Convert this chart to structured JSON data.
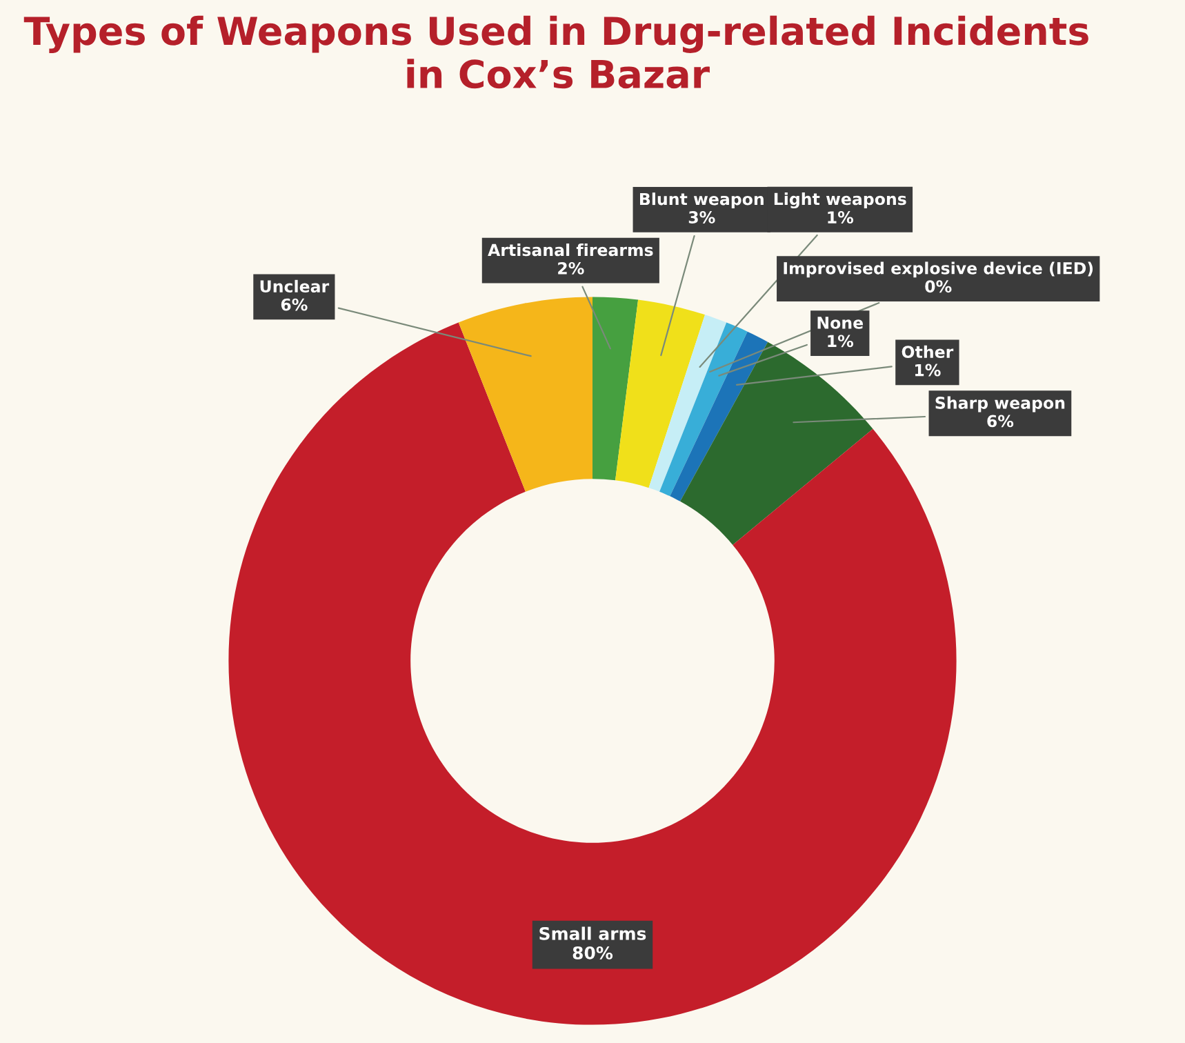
{
  "chart_data": {
    "type": "donut",
    "title": "Types of Weapons Used in Drug-related Incidents\nin Cox’s Bazar",
    "categories": [
      "Artisanal firearms",
      "Blunt weapon",
      "Light weapons",
      "Improvised explosive device (IED)",
      "None",
      "Other",
      "Sharp weapon",
      "Small arms",
      "Unclear"
    ],
    "values": [
      2,
      3,
      1,
      0,
      1,
      1,
      6,
      80,
      6
    ],
    "colors": [
      "#46a040",
      "#f0e01a",
      "#c6eef6",
      "#5a9fd0",
      "#38aed8",
      "#1c74b8",
      "#2c6a2e",
      "#c41e2a",
      "#f5b61a"
    ],
    "value_labels": [
      "2%",
      "3%",
      "1%",
      "0%",
      "1%",
      "1%",
      "6%",
      "80%",
      "6%"
    ],
    "legend": false
  }
}
